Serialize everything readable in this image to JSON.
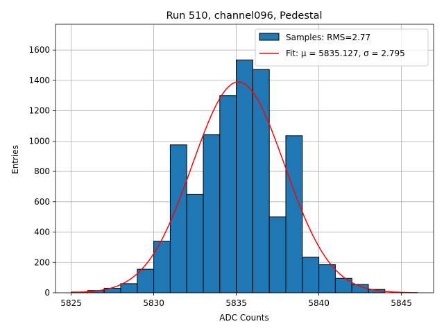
{
  "chart_data": {
    "type": "bar",
    "title": "Run 510, channel096, Pedestal",
    "xlabel": "ADC Counts",
    "ylabel": "Entries",
    "xlim": [
      5824.05,
      5846.95
    ],
    "ylim": [
      0,
      1770
    ],
    "grid": true,
    "legend_position": "top-right",
    "x_ticks": [
      5825,
      5830,
      5835,
      5840,
      5845
    ],
    "y_ticks": [
      0,
      200,
      400,
      600,
      800,
      1000,
      1200,
      1400,
      1600
    ],
    "bin_edges": [
      5825,
      5826,
      5827,
      5828,
      5829,
      5830,
      5831,
      5832,
      5833,
      5834,
      5835,
      5836,
      5837,
      5838,
      5839,
      5840,
      5841,
      5842,
      5843,
      5844,
      5845,
      5846
    ],
    "series": [
      {
        "name": "Samples: RMS=2.77",
        "kind": "histogram",
        "color": "#1f77b4",
        "edge_color": "#000000",
        "values": [
          5,
          15,
          30,
          60,
          155,
          340,
          975,
          648,
          1043,
          1300,
          1535,
          1472,
          500,
          1035,
          235,
          185,
          95,
          55,
          22,
          0,
          0
        ]
      },
      {
        "name": "Fit: μ = 5835.127, σ = 2.795",
        "kind": "gaussian-fit",
        "color": "#ff0000",
        "mu": 5835.127,
        "sigma": 2.795,
        "amplitude": 1390,
        "x_range": [
          5825,
          5846
        ]
      }
    ]
  }
}
